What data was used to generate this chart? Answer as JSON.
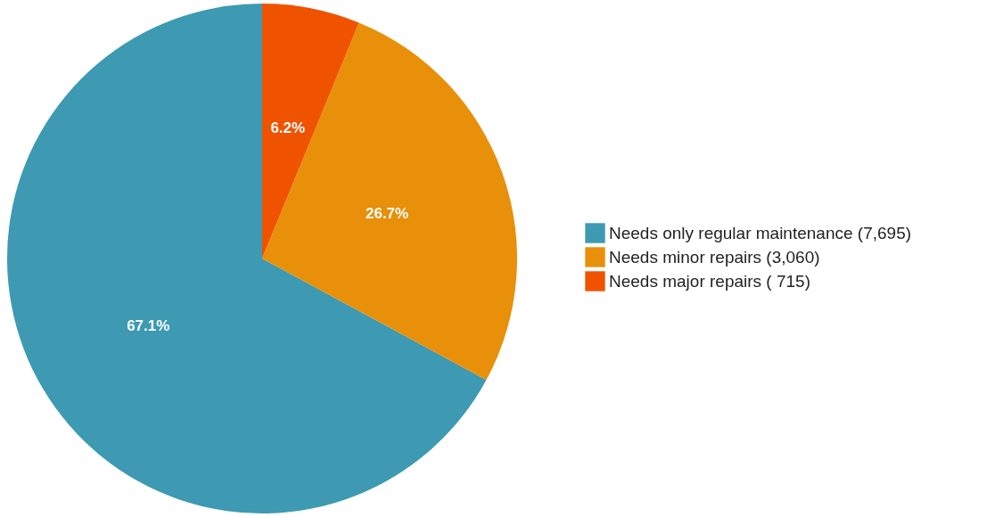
{
  "chart_data": {
    "type": "pie",
    "categories": [
      "Needs only regular maintenance (7,695)",
      "Needs minor repairs (3,060)",
      "Needs major repairs (  715)"
    ],
    "values": [
      67.1,
      26.7,
      6.2
    ],
    "colors": [
      "#3d9ab2",
      "#e8900a",
      "#ef5300"
    ],
    "value_labels": [
      "67.1%",
      "26.7%",
      "6.2%"
    ],
    "legend": "right"
  }
}
